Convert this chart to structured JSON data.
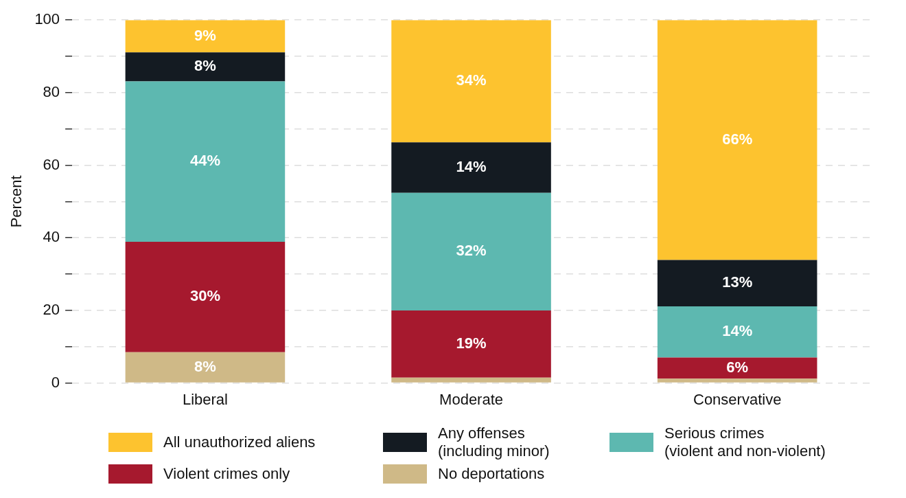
{
  "chart_data": {
    "type": "bar",
    "stacked": true,
    "ylabel": "Percent",
    "categories": [
      "Liberal",
      "Moderate",
      "Conservative"
    ],
    "series": [
      {
        "name": "No deportations",
        "color": "#cfb987",
        "values": [
          8.5,
          1.5,
          1.2
        ],
        "value_labels": [
          "8%",
          null,
          null
        ]
      },
      {
        "name": "Violent crimes only",
        "color": "#a6192e",
        "values": [
          30.4,
          18.5,
          5.8
        ],
        "value_labels": [
          "30%",
          "19%",
          "6%"
        ]
      },
      {
        "name": "Serious crimes\n(violent and non-violent)",
        "color": "#5db8b0",
        "values": [
          44.2,
          32.4,
          14.1
        ],
        "value_labels": [
          "44%",
          "32%",
          "14%"
        ]
      },
      {
        "name": "Any offenses\n(including minor)",
        "color": "#141b22",
        "values": [
          8,
          13.9,
          12.8
        ],
        "value_labels": [
          "8%",
          "14%",
          "13%"
        ]
      },
      {
        "name": "All unauthorized aliens",
        "color": "#fdc32f",
        "values": [
          8.9,
          33.7,
          66.1
        ],
        "value_labels": [
          "9%",
          "34%",
          "66%"
        ]
      }
    ],
    "ylim": [
      0,
      100
    ],
    "yticks": [
      0,
      {
        "value": 10,
        "label": null
      },
      20,
      {
        "value": 30,
        "label": null
      },
      40,
      {
        "value": 50,
        "label": null
      },
      60,
      {
        "value": 70,
        "label": null
      },
      80,
      {
        "value": 90,
        "label": null
      },
      100
    ],
    "grid": "y",
    "legend": "bottom"
  }
}
